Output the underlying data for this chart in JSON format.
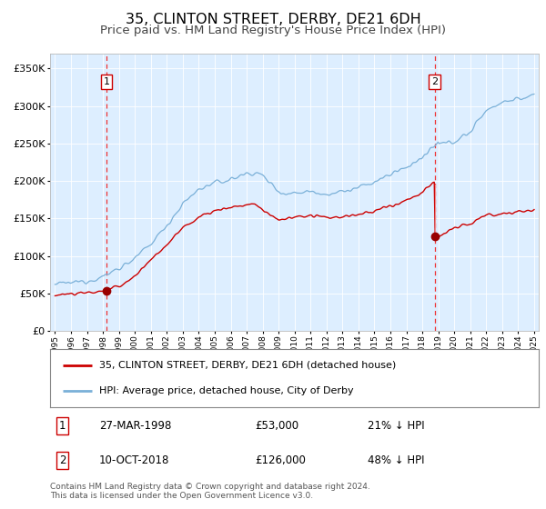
{
  "title": "35, CLINTON STREET, DERBY, DE21 6DH",
  "subtitle": "Price paid vs. HM Land Registry's House Price Index (HPI)",
  "title_fontsize": 11.5,
  "subtitle_fontsize": 9.5,
  "background_color": "#ffffff",
  "plot_bg_color": "#ddeeff",
  "hpi_color": "#7ab0d8",
  "price_color": "#cc0000",
  "marker_color": "#990000",
  "dashed_line_color": "#ee3333",
  "ylim": [
    0,
    370000
  ],
  "yticks": [
    0,
    50000,
    100000,
    150000,
    200000,
    250000,
    300000,
    350000
  ],
  "ytick_labels": [
    "£0",
    "£50K",
    "£100K",
    "£150K",
    "£200K",
    "£250K",
    "£300K",
    "£350K"
  ],
  "year_start": 1995,
  "year_end": 2025,
  "transaction1_date": 1998.23,
  "transaction1_price": 53000,
  "transaction1_label": "1",
  "transaction1_date_str": "27-MAR-1998",
  "transaction1_price_str": "£53,000",
  "transaction1_hpi_str": "21% ↓ HPI",
  "transaction2_date": 2018.77,
  "transaction2_price": 126000,
  "transaction2_label": "2",
  "transaction2_date_str": "10-OCT-2018",
  "transaction2_price_str": "£126,000",
  "transaction2_hpi_str": "48% ↓ HPI",
  "legend_label1": "35, CLINTON STREET, DERBY, DE21 6DH (detached house)",
  "legend_label2": "HPI: Average price, detached house, City of Derby",
  "footnote": "Contains HM Land Registry data © Crown copyright and database right 2024.\nThis data is licensed under the Open Government Licence v3.0."
}
